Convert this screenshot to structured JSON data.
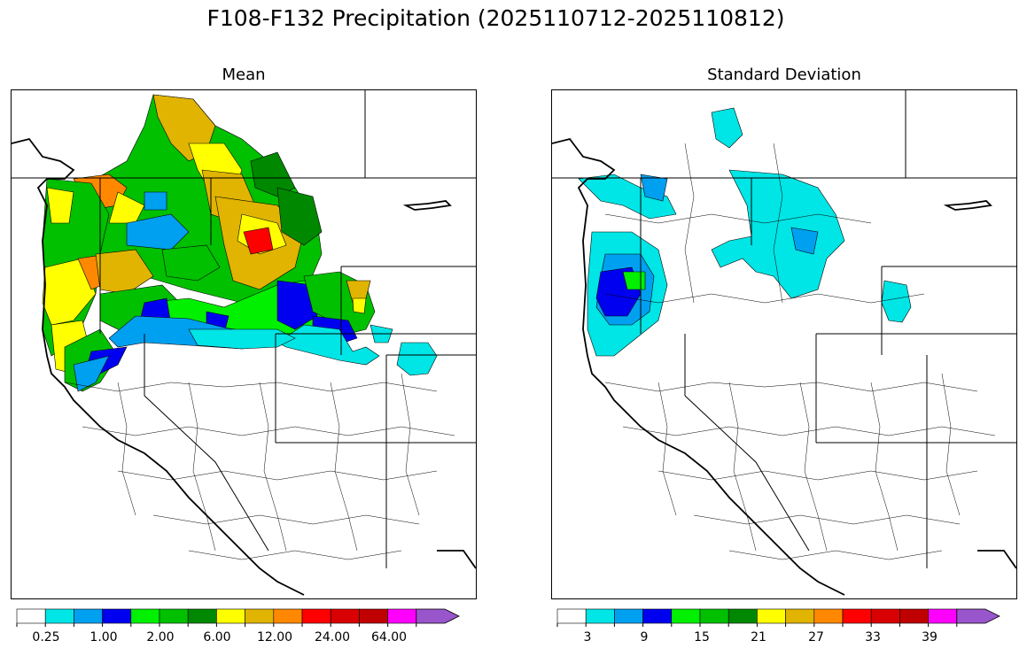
{
  "figure": {
    "title": "F108-F132 Precipitation (2025110712-2025110812)"
  },
  "panels": [
    {
      "subtitle": "Mean",
      "colorbar": {
        "colors": [
          "#ffffff",
          "#00e5e5",
          "#00a0f0",
          "#0000f0",
          "#00f000",
          "#00c000",
          "#008800",
          "#ffff00",
          "#e0b400",
          "#ff8800",
          "#ff0000",
          "#d80000",
          "#c00000",
          "#ff00ff",
          "#9955cc"
        ],
        "tick_labels": [
          "0.25",
          "1.00",
          "2.00",
          "6.00",
          "12.00",
          "24.00",
          "64.00"
        ]
      }
    },
    {
      "subtitle": "Standard Deviation",
      "colorbar": {
        "colors": [
          "#ffffff",
          "#00e5e5",
          "#00a0f0",
          "#0000f0",
          "#00f000",
          "#00c000",
          "#008800",
          "#ffff00",
          "#e0b400",
          "#ff8800",
          "#ff0000",
          "#d80000",
          "#c00000",
          "#ff00ff",
          "#9955cc"
        ],
        "tick_labels": [
          "3",
          "9",
          "15",
          "21",
          "27",
          "33",
          "39"
        ]
      }
    }
  ]
}
